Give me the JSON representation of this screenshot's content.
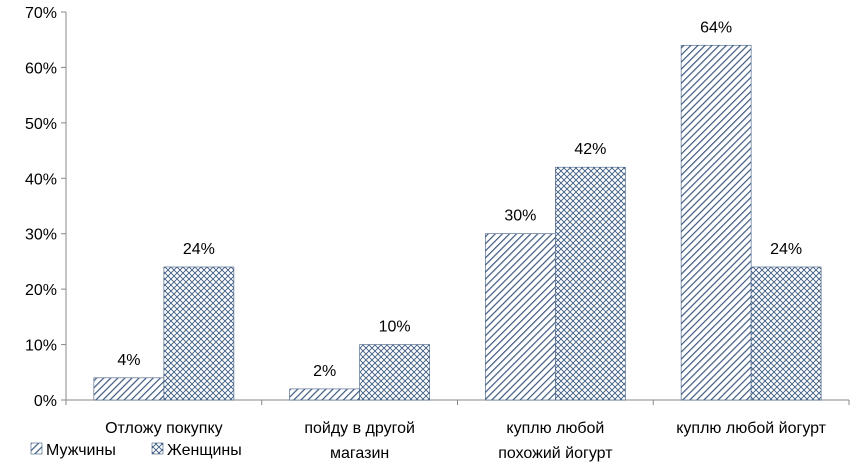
{
  "chart_data": {
    "type": "bar",
    "categories": [
      [
        "Отложу покупку"
      ],
      [
        "пойду в другой",
        "магазин"
      ],
      [
        "куплю любой",
        "похожий йогурт"
      ],
      [
        "куплю любой йогурт"
      ]
    ],
    "series": [
      {
        "name": "Мужчины",
        "values": [
          4,
          2,
          30,
          64
        ],
        "labels": [
          "4%",
          "2%",
          "30%",
          "64%"
        ],
        "pattern": "diagonal-hatch"
      },
      {
        "name": "Женщины",
        "values": [
          24,
          10,
          42,
          24
        ],
        "labels": [
          "24%",
          "10%",
          "42%",
          "24%"
        ],
        "pattern": "cross-hatch"
      }
    ],
    "ylim": [
      0,
      70
    ],
    "yticks": [
      "0%",
      "10%",
      "20%",
      "30%",
      "40%",
      "50%",
      "60%",
      "70%"
    ],
    "ytick_values": [
      0,
      10,
      20,
      30,
      40,
      50,
      60,
      70
    ],
    "grid": false,
    "legend_position": "bottom-left",
    "colors": {
      "series_stroke": "#3d5a80",
      "axis": "#888888"
    }
  }
}
